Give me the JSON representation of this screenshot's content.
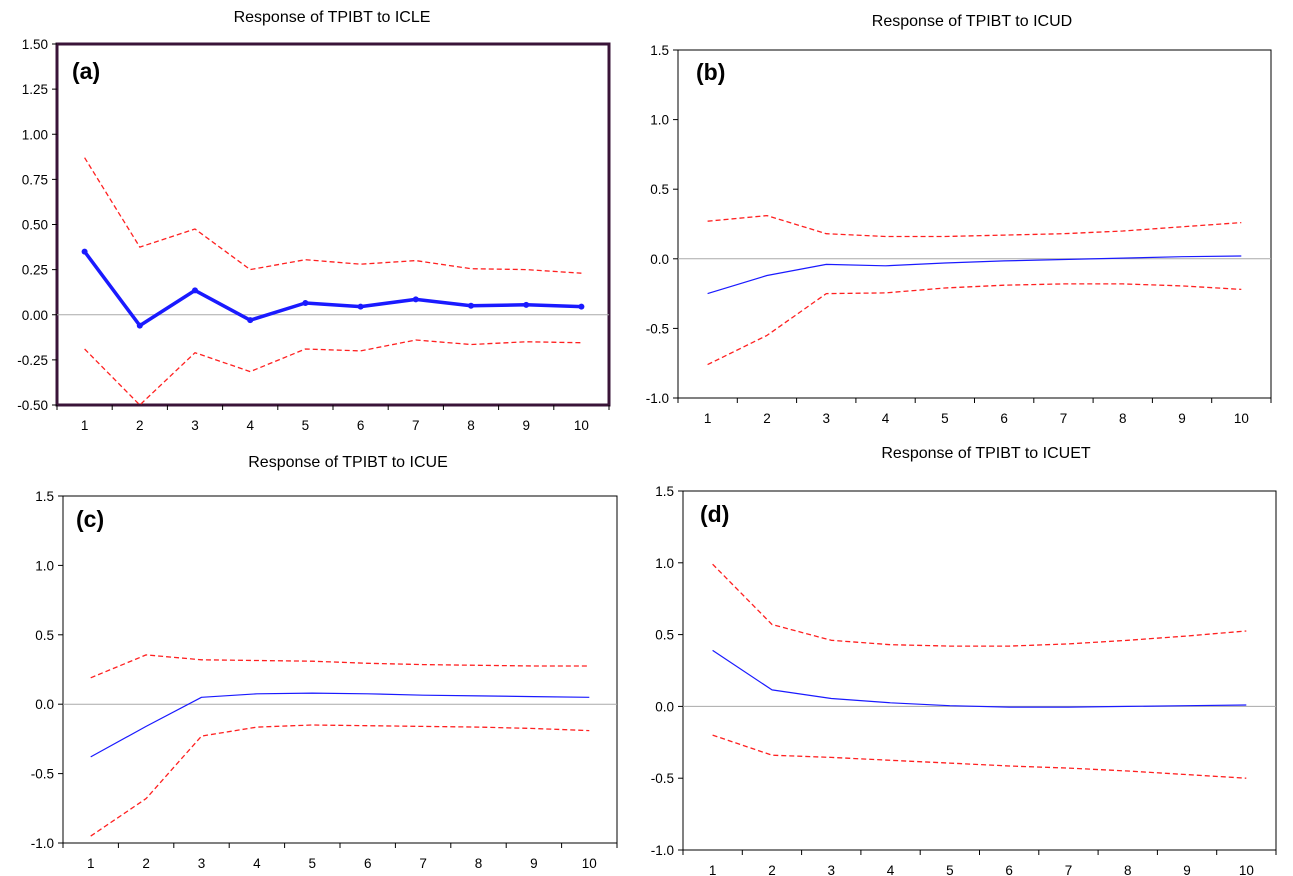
{
  "chart_data": [
    {
      "type": "line",
      "panel_label": "(a)",
      "title": "Response of TPIBT to ICLE",
      "x": [
        1,
        2,
        3,
        4,
        5,
        6,
        7,
        8,
        9,
        10
      ],
      "ylim": [
        -0.5,
        1.5
      ],
      "yticks": [
        "1.50",
        "1.25",
        "1.00",
        "0.75",
        "0.50",
        "0.25",
        "0.00",
        "-0.25",
        "-0.50"
      ],
      "ytick_values": [
        1.5,
        1.25,
        1.0,
        0.75,
        0.5,
        0.25,
        0.0,
        -0.25,
        -0.5
      ],
      "series": [
        {
          "role": "response",
          "values": [
            0.35,
            -0.06,
            0.135,
            -0.03,
            0.065,
            0.045,
            0.085,
            0.05,
            0.055,
            0.045
          ]
        },
        {
          "role": "upper_band",
          "values": [
            0.87,
            0.375,
            0.475,
            0.25,
            0.305,
            0.28,
            0.3,
            0.255,
            0.25,
            0.23
          ]
        },
        {
          "role": "lower_band",
          "values": [
            -0.19,
            -0.5,
            -0.21,
            -0.315,
            -0.19,
            -0.2,
            -0.14,
            -0.165,
            -0.15,
            -0.155
          ]
        }
      ],
      "colors": {
        "response": "#1a1aff",
        "bands": "#ff2020",
        "frame": "#3a1438",
        "zero_line": "#aaaaaa"
      },
      "grid": false
    },
    {
      "type": "line",
      "panel_label": "(b)",
      "title": "Response of TPIBT to ICUD",
      "x": [
        1,
        2,
        3,
        4,
        5,
        6,
        7,
        8,
        9,
        10
      ],
      "ylim": [
        -1.0,
        1.5
      ],
      "yticks": [
        "1.5",
        "1.0",
        "0.5",
        "0.0",
        "-0.5",
        "-1.0"
      ],
      "ytick_values": [
        1.5,
        1.0,
        0.5,
        0.0,
        -0.5,
        -1.0
      ],
      "series": [
        {
          "role": "response",
          "values": [
            -0.25,
            -0.12,
            -0.04,
            -0.05,
            -0.03,
            -0.015,
            -0.005,
            0.005,
            0.015,
            0.02
          ]
        },
        {
          "role": "upper_band",
          "values": [
            0.27,
            0.31,
            0.18,
            0.16,
            0.16,
            0.17,
            0.18,
            0.2,
            0.23,
            0.26
          ]
        },
        {
          "role": "lower_band",
          "values": [
            -0.76,
            -0.55,
            -0.25,
            -0.245,
            -0.21,
            -0.19,
            -0.18,
            -0.18,
            -0.195,
            -0.22
          ]
        }
      ],
      "colors": {
        "response": "#1a1aff",
        "bands": "#ff2020",
        "frame": "#000000",
        "zero_line": "#aaaaaa"
      },
      "grid": false
    },
    {
      "type": "line",
      "panel_label": "(c)",
      "title": "Response of TPIBT to ICUE",
      "x": [
        1,
        2,
        3,
        4,
        5,
        6,
        7,
        8,
        9,
        10
      ],
      "ylim": [
        -1.0,
        1.5
      ],
      "yticks": [
        "1.5",
        "1.0",
        "0.5",
        "0.0",
        "-0.5",
        "-1.0"
      ],
      "ytick_values": [
        1.5,
        1.0,
        0.5,
        0.0,
        -0.5,
        -1.0
      ],
      "series": [
        {
          "role": "response",
          "values": [
            -0.38,
            -0.16,
            0.05,
            0.075,
            0.08,
            0.075,
            0.065,
            0.06,
            0.055,
            0.05
          ]
        },
        {
          "role": "upper_band",
          "values": [
            0.19,
            0.355,
            0.32,
            0.315,
            0.31,
            0.295,
            0.285,
            0.28,
            0.275,
            0.275
          ]
        },
        {
          "role": "lower_band",
          "values": [
            -0.95,
            -0.68,
            -0.23,
            -0.165,
            -0.15,
            -0.155,
            -0.16,
            -0.165,
            -0.175,
            -0.19
          ]
        }
      ],
      "colors": {
        "response": "#1a1aff",
        "bands": "#ff2020",
        "frame": "#000000",
        "zero_line": "#aaaaaa"
      },
      "grid": false
    },
    {
      "type": "line",
      "panel_label": "(d)",
      "title": "Response of TPIBT to ICUET",
      "x": [
        1,
        2,
        3,
        4,
        5,
        6,
        7,
        8,
        9,
        10
      ],
      "ylim": [
        -1.0,
        1.5
      ],
      "yticks": [
        "1.5",
        "1.0",
        "0.5",
        "0.0",
        "-0.5",
        "-1.0"
      ],
      "ytick_values": [
        1.5,
        1.0,
        0.5,
        0.0,
        -0.5,
        -1.0
      ],
      "series": [
        {
          "role": "response",
          "values": [
            0.39,
            0.115,
            0.055,
            0.025,
            0.005,
            -0.005,
            -0.005,
            0.0,
            0.005,
            0.01
          ]
        },
        {
          "role": "upper_band",
          "values": [
            0.99,
            0.57,
            0.46,
            0.43,
            0.42,
            0.42,
            0.435,
            0.46,
            0.49,
            0.525
          ]
        },
        {
          "role": "lower_band",
          "values": [
            -0.2,
            -0.34,
            -0.355,
            -0.375,
            -0.395,
            -0.415,
            -0.43,
            -0.45,
            -0.475,
            -0.5
          ]
        }
      ],
      "colors": {
        "response": "#1a1aff",
        "bands": "#ff2020",
        "frame": "#000000",
        "zero_line": "#aaaaaa"
      },
      "grid": false
    }
  ]
}
